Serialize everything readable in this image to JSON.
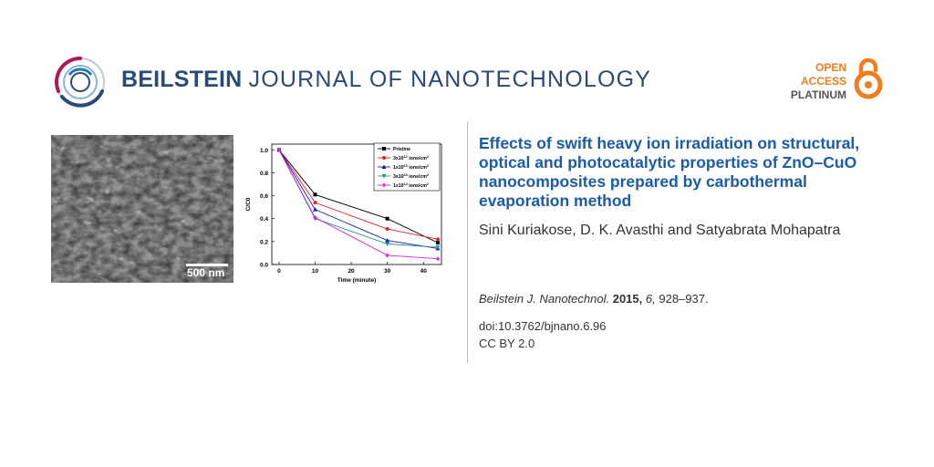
{
  "header": {
    "journal_bold": "BEILSTEIN",
    "journal_light": "JOURNAL OF NANOTECHNOLOGY",
    "oa_line1": "OPEN",
    "oa_line2": "ACCESS",
    "oa_line3": "PLATINUM"
  },
  "sem": {
    "scale_label": "500 nm"
  },
  "article": {
    "title": "Effects of swift heavy ion irradiation on structural, optical and photocatalytic properties of ZnO–CuO nanocomposites prepared by carbothermal evaporation method",
    "authors": "Sini Kuriakose, D. K. Avasthi and Satyabrata Mohapatra",
    "citation_journal": "Beilstein J. Nanotechnol.",
    "citation_year": "2015,",
    "citation_volume": "6,",
    "citation_pages": "928–937.",
    "doi": "doi:10.3762/bjnano.6.96",
    "license": "CC BY 2.0"
  },
  "colors": {
    "brand": "#2a4a78",
    "title": "#1a5ca8",
    "open_access": "#f07d1e"
  },
  "chart_data": {
    "type": "line",
    "xlabel": "Time (minute)",
    "ylabel": "C/C0",
    "xlim": [
      -2,
      45
    ],
    "ylim": [
      0,
      1.05
    ],
    "xticks": [
      0,
      10,
      20,
      30,
      40
    ],
    "yticks": [
      0.0,
      0.2,
      0.4,
      0.6,
      0.8,
      1.0
    ],
    "legend_position": "top-right",
    "x": [
      0,
      10,
      30,
      44
    ],
    "series": [
      {
        "name": "Pristine",
        "sup": "",
        "color": "#000000",
        "marker": "square",
        "values": [
          1.0,
          0.61,
          0.4,
          0.19
        ]
      },
      {
        "name": "3x10",
        "sup": "12",
        "suffix": " ions/cm",
        "sup2": "2",
        "color": "#e8212a",
        "marker": "circle",
        "values": [
          1.0,
          0.54,
          0.31,
          0.22
        ]
      },
      {
        "name": "1x10",
        "sup": "13",
        "suffix": " ions/cm",
        "sup2": "2",
        "color": "#1a1aa8",
        "marker": "triangle",
        "values": [
          1.0,
          0.48,
          0.21,
          0.14
        ]
      },
      {
        "name": "3x10",
        "sup": "13",
        "suffix": " ions/cm",
        "sup2": "2",
        "color": "#1b9a9a",
        "marker": "triangle-down",
        "values": [
          1.0,
          0.4,
          0.18,
          0.15
        ]
      },
      {
        "name": "1x10",
        "sup": "14",
        "suffix": " ions/cm",
        "sup2": "2",
        "color": "#e020e0",
        "marker": "diamond",
        "values": [
          1.0,
          0.41,
          0.08,
          0.05
        ]
      }
    ]
  }
}
